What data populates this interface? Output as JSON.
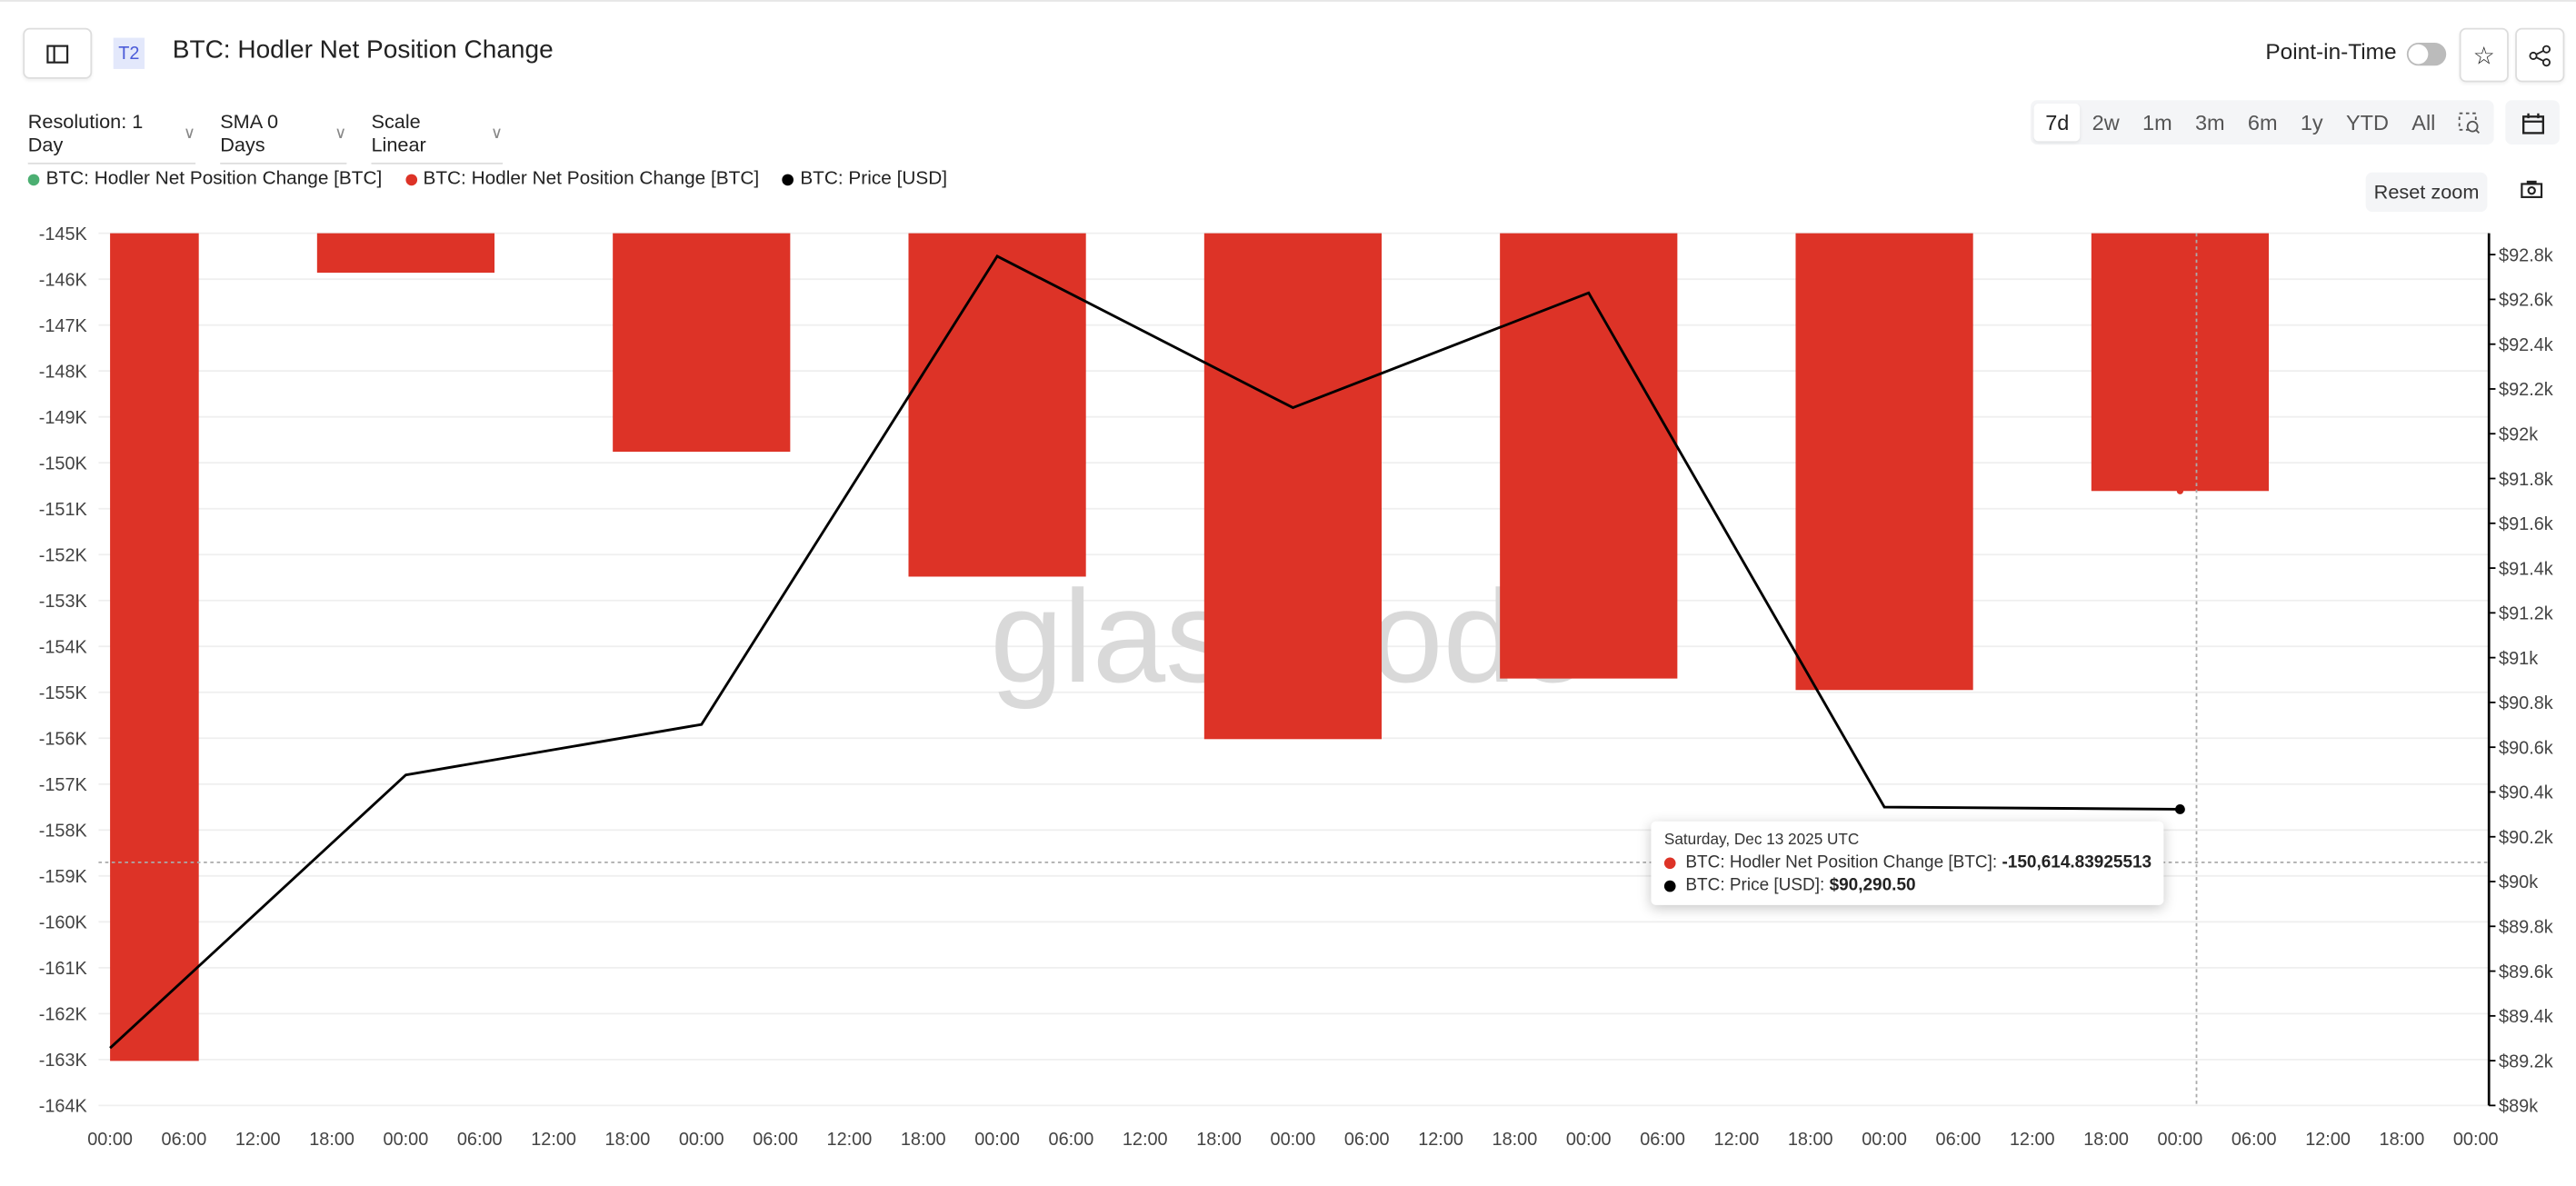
{
  "header": {
    "tier_badge": "T2",
    "title": "BTC: Hodler Net Position Change",
    "point_in_time_label": "Point-in-Time",
    "point_in_time_on": false
  },
  "controls": {
    "resolution": "Resolution: 1 Day",
    "sma": "SMA 0 Days",
    "scale": "Scale Linear",
    "ranges": [
      "7d",
      "2w",
      "1m",
      "3m",
      "6m",
      "1y",
      "YTD",
      "All"
    ],
    "active_range": "7d",
    "reset_zoom": "Reset zoom"
  },
  "legend": [
    {
      "label": "BTC: Hodler Net Position Change [BTC]",
      "color": "#4caf72"
    },
    {
      "label": "BTC: Hodler Net Position Change [BTC]",
      "color": "#dd3327"
    },
    {
      "label": "BTC: Price [USD]",
      "color": "#000000"
    }
  ],
  "watermark": "glassnode",
  "tooltip": {
    "date": "Saturday, Dec 13 2025 UTC",
    "rows": [
      {
        "label": "BTC: Hodler Net Position Change [BTC]: ",
        "value": "-150,614.83925513",
        "color": "#dd3327"
      },
      {
        "label": "BTC: Price [USD]: ",
        "value": "$90,290.50",
        "color": "#000000"
      }
    ]
  },
  "chart_data": {
    "type": "bar+line",
    "x_tick_labels": [
      "00:00",
      "06:00",
      "12:00",
      "18:00",
      "00:00",
      "06:00",
      "12:00",
      "18:00",
      "00:00",
      "06:00",
      "12:00",
      "18:00",
      "00:00",
      "06:00",
      "12:00",
      "18:00",
      "00:00",
      "06:00",
      "12:00",
      "18:00",
      "00:00",
      "06:00",
      "12:00",
      "18:00",
      "00:00",
      "06:00",
      "12:00",
      "18:00",
      "00:00",
      "06:00",
      "12:00",
      "18:00",
      "00:00"
    ],
    "x": [
      "2025-12-06",
      "2025-12-07",
      "2025-12-08",
      "2025-12-09",
      "2025-12-10",
      "2025-12-11",
      "2025-12-12",
      "2025-12-13"
    ],
    "series": [
      {
        "name": "BTC: Hodler Net Position Change [BTC]",
        "type": "bar",
        "axis": "left",
        "color": "#dd3327",
        "values": [
          -163030,
          -145860,
          -149760,
          -152480,
          -156020,
          -154700,
          -154950,
          -150614.84
        ]
      },
      {
        "name": "BTC: Price [USD]",
        "type": "line",
        "axis": "right",
        "color": "#000000",
        "values": [
          89250,
          90440,
          90660,
          92700,
          92040,
          92540,
          90300,
          90290.5
        ]
      }
    ],
    "y_left": {
      "lim": [
        -164000,
        -145000
      ],
      "ticks": [
        "-145K",
        "-146K",
        "-147K",
        "-148K",
        "-149K",
        "-150K",
        "-151K",
        "-152K",
        "-153K",
        "-154K",
        "-155K",
        "-156K",
        "-157K",
        "-158K",
        "-159K",
        "-160K",
        "-161K",
        "-162K",
        "-163K",
        "-164K"
      ]
    },
    "y_right": {
      "lim": [
        89000,
        92800
      ],
      "ticks": [
        "$92.8k",
        "$92.6k",
        "$92.4k",
        "$92.2k",
        "$92k",
        "$91.8k",
        "$91.6k",
        "$91.4k",
        "$91.2k",
        "$91k",
        "$90.8k",
        "$90.6k",
        "$90.4k",
        "$90.2k",
        "$90k",
        "$89.8k",
        "$89.6k",
        "$89.4k",
        "$89.2k",
        "$89k"
      ]
    },
    "grid": true,
    "legend_position": "top-left",
    "highlighted_point": "2025-12-13"
  }
}
